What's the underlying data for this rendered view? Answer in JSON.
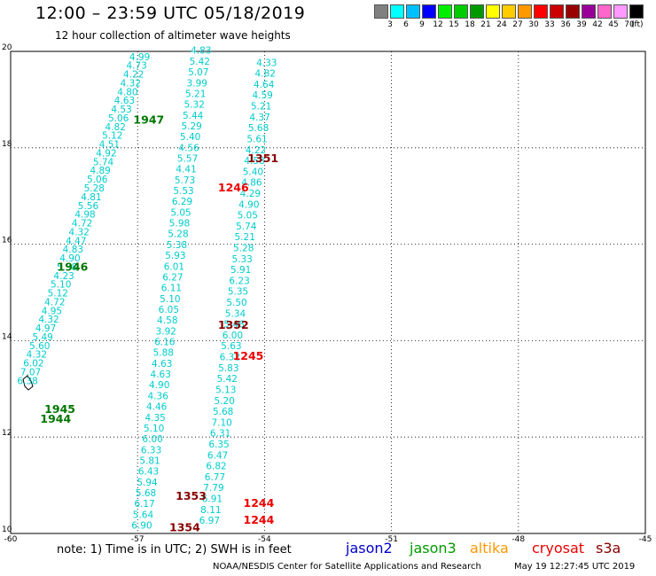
{
  "header": {
    "title": "12:00 – 23:59 UTC 05/18/2019",
    "subtitle": "12 hour collection of altimeter wave heights"
  },
  "legend": {
    "colors": [
      "#808080",
      "#00ffff",
      "#00bfff",
      "#0000ff",
      "#00ee00",
      "#00cc00",
      "#009900",
      "#ffff00",
      "#ffcc00",
      "#ff9900",
      "#ff0000",
      "#cc0000",
      "#990000",
      "#990099",
      "#ff66cc",
      "#ff99ff",
      "#000000"
    ],
    "labels": [
      "3",
      "6",
      "9",
      "12",
      "15",
      "18",
      "21",
      "24",
      "27",
      "30",
      "33",
      "36",
      "39",
      "42",
      "45",
      "70"
    ],
    "unit": "(ft)"
  },
  "map": {
    "lon_ticks": [
      "-60",
      "-57",
      "-54",
      "-51",
      "-48",
      "-45"
    ],
    "lat_ticks": [
      "20",
      "18",
      "16",
      "14",
      "12",
      "10"
    ],
    "tracks": [
      {
        "name": "track-a",
        "color": "#00cccc",
        "start": [
          -59.6,
          13.1
        ],
        "end": [
          -56.95,
          19.82
        ],
        "values": [
          "6.38",
          "7.07",
          "6.02",
          "4.32",
          "5.60",
          "5.49",
          "4.97",
          "4.32",
          "4.95",
          "4.72",
          "5.12",
          "5.10",
          "4.23",
          "5.38",
          "4.90",
          "4.83",
          "4.47",
          "4.32",
          "4.72",
          "4.98",
          "5.56",
          "4.81",
          "5.28",
          "5.06",
          "4.89",
          "5.74",
          "4.92",
          "4.51",
          "5.12",
          "4.82",
          "5.06",
          "4.53",
          "4.63",
          "4.80",
          "4.32",
          "4.22",
          "4.73",
          "4.99"
        ]
      },
      {
        "name": "track-b",
        "color": "#00cccc",
        "start": [
          -56.9,
          10.1
        ],
        "end": [
          -55.5,
          19.95
        ],
        "values": [
          "6.90",
          "5.64",
          "6.17",
          "5.68",
          "5.94",
          "6.43",
          "5.81",
          "6.33",
          "6.00",
          "5.10",
          "4.35",
          "4.46",
          "4.36",
          "4.90",
          "4.63",
          "4.63",
          "5.88",
          "6.16",
          "3.92",
          "4.58",
          "6.05",
          "5.10",
          "6.11",
          "6.27",
          "6.01",
          "5.93",
          "5.38",
          "5.28",
          "5.98",
          "5.05",
          "6.29",
          "5.53",
          "5.73",
          "4.41",
          "5.57",
          "4.56",
          "5.40",
          "5.29",
          "5.44",
          "5.32",
          "5.21",
          "3.99",
          "5.07",
          "5.42",
          "4.83"
        ]
      },
      {
        "name": "track-c",
        "color": "#00cccc",
        "start": [
          -55.3,
          10.2
        ],
        "end": [
          -53.95,
          19.7
        ],
        "values": [
          "6.97",
          "8.11",
          "6.91",
          "7.79",
          "6.77",
          "6.82",
          "6.47",
          "6.35",
          "6.31",
          "7.10",
          "5.68",
          "5.20",
          "5.13",
          "5.42",
          "5.83",
          "6.32",
          "5.63",
          "6.00",
          "5.46",
          "5.34",
          "5.50",
          "5.35",
          "6.23",
          "5.91",
          "5.33",
          "5.28",
          "5.21",
          "5.74",
          "5.05",
          "4.90",
          "4.29",
          "4.86",
          "5.40",
          "4.58",
          "4.22",
          "5.61",
          "5.68",
          "4.37",
          "5.21",
          "4.59",
          "4.64",
          "4.82",
          "4.33"
        ]
      }
    ],
    "time_labels": [
      {
        "text": "1947",
        "color": "#007700",
        "lon": -57.1,
        "lat": 18.5
      },
      {
        "text": "1946",
        "color": "#007700",
        "lon": -58.9,
        "lat": 15.45
      },
      {
        "text": "1945",
        "color": "#007700",
        "lon": -59.2,
        "lat": 12.5
      },
      {
        "text": "1944",
        "color": "#007700",
        "lon": -59.3,
        "lat": 12.3
      },
      {
        "text": "1351",
        "color": "#880000",
        "lon": -54.4,
        "lat": 17.7
      },
      {
        "text": "1246",
        "color": "#ee0000",
        "lon": -55.1,
        "lat": 17.1
      },
      {
        "text": "1352",
        "color": "#880000",
        "lon": -55.1,
        "lat": 14.25
      },
      {
        "text": "1245",
        "color": "#ee0000",
        "lon": -54.75,
        "lat": 13.6
      },
      {
        "text": "1353",
        "color": "#880000",
        "lon": -56.1,
        "lat": 10.7
      },
      {
        "text": "1244",
        "color": "#ee0000",
        "lon": -54.5,
        "lat": 10.55
      },
      {
        "text": "1244",
        "color": "#ee0000",
        "lon": -54.5,
        "lat": 10.2
      },
      {
        "text": "1354",
        "color": "#880000",
        "lon": -56.25,
        "lat": 10.05
      }
    ]
  },
  "footer": {
    "note": "note: 1) Time is in UTC; 2) SWH is in feet",
    "satellites": [
      {
        "name": "jason2",
        "color": "#0000cc"
      },
      {
        "name": "jason3",
        "color": "#009900"
      },
      {
        "name": "altika",
        "color": "#ff9900"
      },
      {
        "name": "cryosat",
        "color": "#ee0000"
      },
      {
        "name": "s3a",
        "color": "#880000"
      }
    ],
    "credit": "NOAA/NESDIS Center for Satellite Applications and Research",
    "timestamp": "May 19 12:27:45 UTC 2019"
  }
}
